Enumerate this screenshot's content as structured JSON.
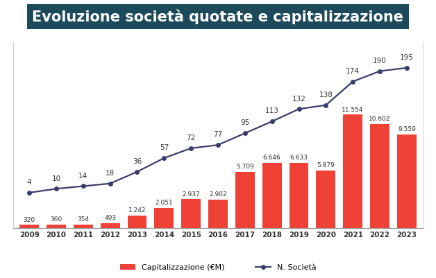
{
  "chart_data": {
    "type": "bar",
    "title": "Evoluzione società quotate e capitalizzazione",
    "categories": [
      "2009",
      "2010",
      "2011",
      "2012",
      "2013",
      "2014",
      "2015",
      "2016",
      "2017",
      "2018",
      "2019",
      "2020",
      "2021",
      "2022",
      "2023"
    ],
    "series": [
      {
        "name": "Capitalizzazione (€M)",
        "type": "bar",
        "color": "#ef4136",
        "values": [
          320,
          360,
          354,
          493,
          1242,
          2051,
          2937,
          2902,
          5709,
          6646,
          6633,
          5879,
          11554,
          10602,
          9559
        ],
        "value_labels": [
          "320",
          "360",
          "354",
          "493",
          "1.242",
          "2.051",
          "2.937",
          "2.902",
          "5.709",
          "6.646",
          "6.633",
          "5.879",
          "11.554",
          "10.602",
          "9.559"
        ]
      },
      {
        "name": "N. Società",
        "type": "line",
        "color": "#3a3d6b",
        "marker": "circle",
        "axis": "y2",
        "values": [
          4,
          10,
          14,
          18,
          36,
          57,
          72,
          77,
          95,
          113,
          132,
          138,
          174,
          190,
          195
        ]
      }
    ],
    "ylim": [
      0,
      19000
    ],
    "y2lim": [
      -50,
      235
    ],
    "data_labels": true,
    "tick_labels": "x",
    "legend": "lower center"
  }
}
